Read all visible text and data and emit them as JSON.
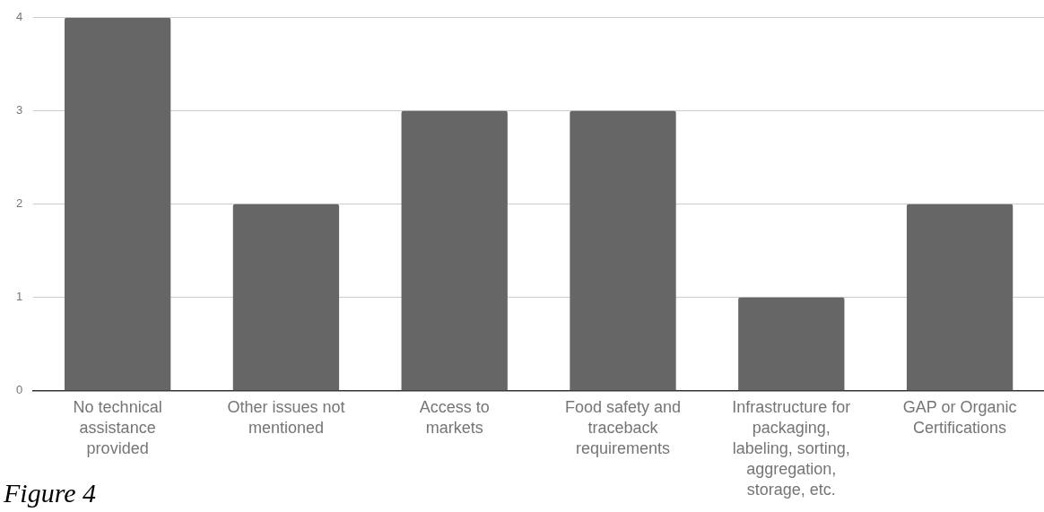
{
  "chart_data": {
    "type": "bar",
    "categories": [
      "No technical assistance provided",
      "Other issues not mentioned",
      "Access to markets",
      "Food safety and traceback requirements",
      "Infrastructure for packaging, labeling, sorting, aggregation, storage, etc.",
      "GAP or Organic Certifications"
    ],
    "values": [
      4,
      2,
      3,
      3,
      1,
      2
    ],
    "color": "#666666",
    "ylim": [
      0,
      4
    ],
    "yticks": [
      0,
      1,
      2,
      3,
      4
    ],
    "grid": "y",
    "annotations": [
      "Figure 4"
    ]
  }
}
